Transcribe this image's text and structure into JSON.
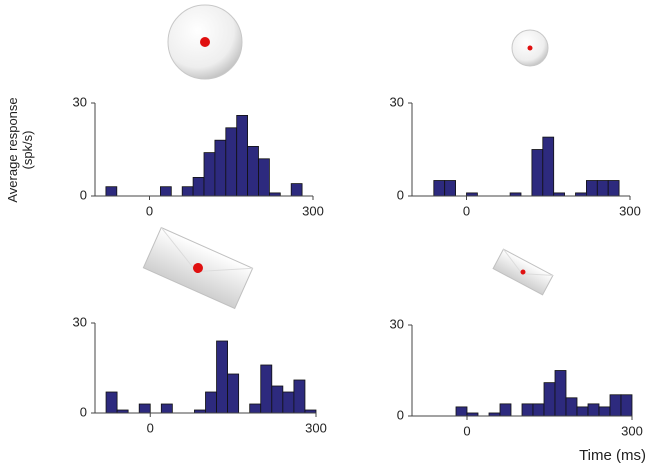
{
  "chart_data": [
    {
      "type": "histogram",
      "y_label": [
        "Average response",
        "(spk/s)"
      ],
      "bins": [
        -100,
        -80,
        -60,
        -40,
        -20,
        0,
        20,
        40,
        60,
        80,
        100,
        120,
        140,
        160,
        180,
        200,
        220,
        240,
        260,
        280,
        300
      ],
      "values": [
        0,
        3,
        0,
        0,
        0,
        0,
        3,
        0,
        3,
        6,
        14,
        18,
        22,
        26,
        16,
        12,
        1,
        0,
        4,
        0
      ],
      "color": "#2d2a7e",
      "xlim": [
        -100,
        300
      ],
      "xticks": [
        0,
        300
      ],
      "ylim": [
        0,
        30
      ],
      "yticks": [
        0,
        30
      ]
    },
    {
      "type": "histogram",
      "bins": [
        -100,
        -80,
        -60,
        -40,
        -20,
        0,
        20,
        40,
        60,
        80,
        100,
        120,
        140,
        160,
        180,
        200,
        220,
        240,
        260,
        280,
        300
      ],
      "values": [
        0,
        0,
        5,
        5,
        0,
        1,
        0,
        0,
        0,
        1,
        0,
        15,
        19,
        1,
        0,
        1,
        5,
        5,
        5,
        0
      ],
      "color": "#2d2a7e",
      "xlim": [
        -100,
        300
      ],
      "xticks": [
        0,
        300
      ],
      "ylim": [
        0,
        30
      ],
      "yticks": [
        0,
        30
      ]
    },
    {
      "type": "histogram",
      "bins": [
        -100,
        -80,
        -60,
        -40,
        -20,
        0,
        20,
        40,
        60,
        80,
        100,
        120,
        140,
        160,
        180,
        200,
        220,
        240,
        260,
        280,
        300
      ],
      "values": [
        0,
        7,
        1,
        0,
        3,
        0,
        3,
        0,
        0,
        1,
        7,
        24,
        13,
        0,
        3,
        16,
        9,
        7,
        11,
        1
      ],
      "color": "#2d2a7e",
      "xlim": [
        -100,
        300
      ],
      "xticks": [
        0,
        300
      ],
      "ylim": [
        0,
        30
      ],
      "yticks": [
        0,
        30
      ]
    },
    {
      "type": "histogram",
      "x_label": "Time (ms)",
      "bins": [
        -100,
        -80,
        -60,
        -40,
        -20,
        0,
        20,
        40,
        60,
        80,
        100,
        120,
        140,
        160,
        180,
        200,
        220,
        240,
        260,
        280,
        300
      ],
      "values": [
        0,
        0,
        0,
        0,
        3,
        1,
        0,
        1,
        4,
        0,
        4,
        4,
        11,
        15,
        6,
        3,
        4,
        3,
        7,
        7
      ],
      "color": "#2d2a7e",
      "xlim": [
        -100,
        300
      ],
      "xticks": [
        0,
        300
      ],
      "ylim": [
        0,
        30
      ],
      "yticks": [
        0,
        30
      ]
    }
  ]
}
